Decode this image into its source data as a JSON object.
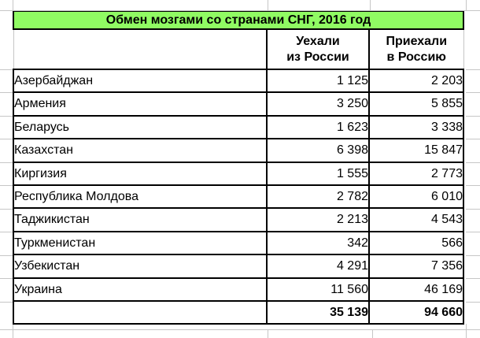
{
  "title": "Обмен мозгами со странами СНГ, 2016 год",
  "headers": {
    "departed_line1": "Уехали",
    "departed_line2": "из России",
    "arrived_line1": "Приехали",
    "arrived_line2": "в Россию"
  },
  "rows": [
    {
      "country": "Азербайджан",
      "departed": "1 125",
      "arrived": "2 203"
    },
    {
      "country": "Армения",
      "departed": "3 250",
      "arrived": "5 855"
    },
    {
      "country": "Беларусь",
      "departed": "1 623",
      "arrived": "3 338"
    },
    {
      "country": "Казахстан",
      "departed": "6 398",
      "arrived": "15 847"
    },
    {
      "country": "Киргизия",
      "departed": "1 555",
      "arrived": "2 773"
    },
    {
      "country": "Республика Молдова",
      "departed": "2 782",
      "arrived": "6 010"
    },
    {
      "country": "Таджикистан",
      "departed": "2 213",
      "arrived": "4 543"
    },
    {
      "country": "Туркменистан",
      "departed": "342",
      "arrived": "566"
    },
    {
      "country": "Узбекистан",
      "departed": "4 291",
      "arrived": "7 356"
    },
    {
      "country": "Украина",
      "departed": "11 560",
      "arrived": "46 169"
    }
  ],
  "totals": {
    "departed": "35 139",
    "arrived": "94 660"
  },
  "colors": {
    "title_bg": "#90FB63",
    "table_border": "#000000",
    "gridline": "#C6C6C6",
    "text": "#000000",
    "background": "#FFFFFF"
  }
}
